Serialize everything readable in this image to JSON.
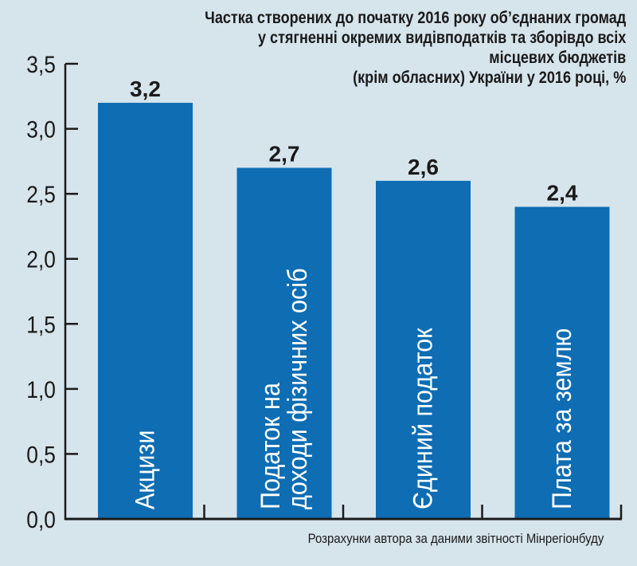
{
  "chart_data": {
    "type": "bar",
    "title": [
      "Частка створених до початку 2016 року об’єднаних громад",
      "у стягненні окремих видівподатків та зборівдо всіх",
      "місцевих бюджетів",
      "(крім обласних) України у 2016 році, %"
    ],
    "categories": [
      [
        "Акцизи"
      ],
      [
        "Податок на",
        "доходи фізичних осіб"
      ],
      [
        "Єдиний податок"
      ],
      [
        "Плата за землю"
      ]
    ],
    "values": [
      3.2,
      2.7,
      2.6,
      2.4
    ],
    "value_labels": [
      "3,2",
      "2,7",
      "2,6",
      "2,4"
    ],
    "yticks": [
      0,
      0.5,
      1.0,
      1.5,
      2.0,
      2.5,
      3.0,
      3.5
    ],
    "ytick_labels": [
      "0,0",
      "0,5",
      "1,0",
      "1,5",
      "2,0",
      "2,5",
      "3,0",
      "3,5"
    ],
    "ylim": [
      0,
      3.5
    ],
    "xlabel": "",
    "ylabel": "",
    "grid": false,
    "source": "Розрахунки автора за даними звітності Мінрегіонбуду",
    "colors": {
      "bar": "#0e6db3",
      "background": "#d6e4ec",
      "axis": "#1a1a1a"
    }
  }
}
